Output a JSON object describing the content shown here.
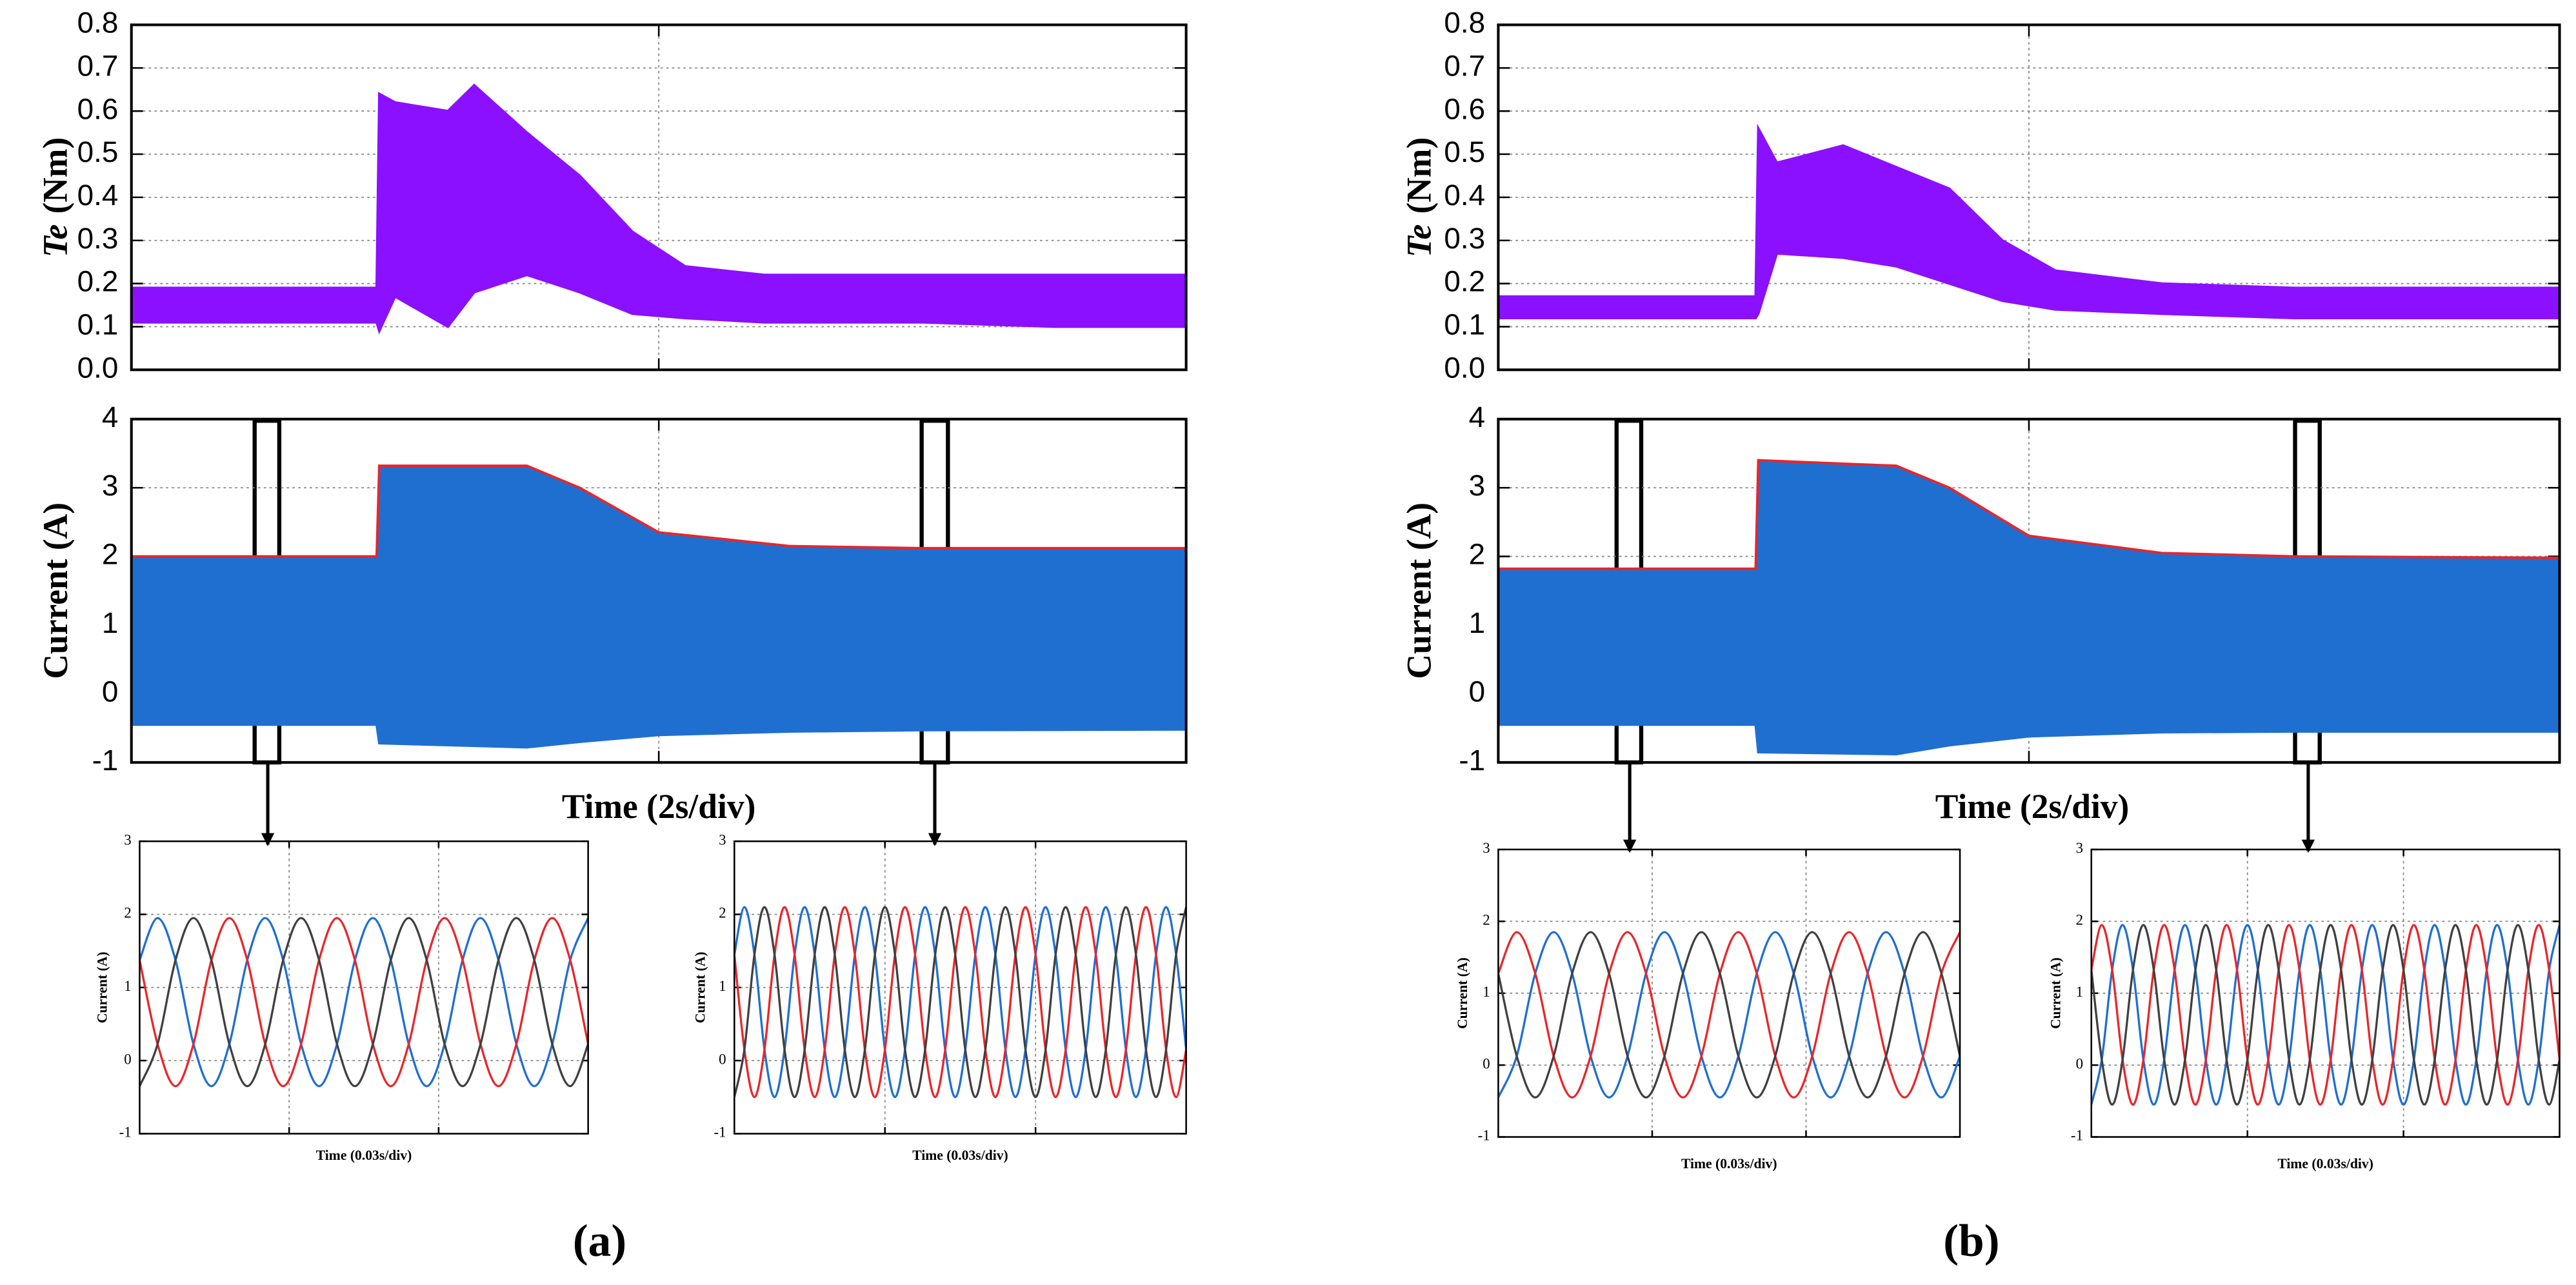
{
  "panel_labels": [
    "(a)",
    "(b)"
  ],
  "chart_data": [
    {
      "type": "band",
      "ylabel": [
        "Te",
        "(Nm)"
      ],
      "xlim": [
        0,
        4
      ],
      "xgrid": [
        2
      ],
      "ylim": [
        0,
        0.8
      ],
      "yticks": [
        {
          "value": 0,
          "label": "0.0"
        },
        0.1,
        0.2,
        0.3,
        0.4,
        0.5,
        0.6,
        0.7,
        0.8
      ],
      "grid": true,
      "fill": "#8b10ff",
      "x": [
        0,
        0.93,
        0.94,
        1.0,
        1.2,
        1.3,
        1.5,
        1.7,
        1.9,
        2.1,
        2.4,
        3.0,
        3.5,
        4.0
      ],
      "series": [
        {
          "color": "#8b10ff",
          "values": [
            0.11,
            0.11,
            0.09,
            0.17,
            0.1,
            0.18,
            0.22,
            0.18,
            0.13,
            0.12,
            0.11,
            0.11,
            0.1,
            0.1
          ]
        },
        {
          "color": "#8b10ff",
          "values": [
            0.19,
            0.19,
            0.64,
            0.62,
            0.6,
            0.66,
            0.55,
            0.45,
            0.32,
            0.24,
            0.22,
            0.22,
            0.22,
            0.22
          ]
        }
      ]
    },
    {
      "type": "band",
      "ylabel": "Current (A)",
      "xlabel": "Time (2s/div)",
      "xlim": [
        0,
        4
      ],
      "xgrid": [
        2
      ],
      "ylim": [
        -1,
        4
      ],
      "yticks": [
        -1,
        0,
        1,
        2,
        3,
        4
      ],
      "grid": true,
      "fill": "#1f6fd1",
      "x": [
        0,
        0.93,
        0.94,
        1.5,
        1.7,
        2.0,
        2.5,
        3.0,
        4.0
      ],
      "series": [
        {
          "color": "#1f6fd1",
          "values": [
            -0.45,
            -0.45,
            -0.72,
            -0.78,
            -0.7,
            -0.6,
            -0.55,
            -0.53,
            -0.52
          ]
        },
        {
          "color": "#e8262a",
          "values": [
            2.0,
            2.0,
            3.32,
            3.32,
            3.0,
            2.35,
            2.15,
            2.12,
            2.12
          ]
        }
      ]
    },
    {
      "type": "line",
      "ylabel": "Current (A)",
      "xlabel": "Time (0.03s/div)",
      "xlim": [
        0,
        0.09
      ],
      "xgrid": [
        0.03,
        0.06
      ],
      "ylim": [
        -1,
        3
      ],
      "yticks": [
        -1,
        0,
        1,
        2,
        3
      ],
      "grid": true,
      "x": [
        0,
        0.0036,
        0.0072,
        0.0108,
        0.0144,
        0.018,
        0.0216,
        0.0252,
        0.0288,
        0.0324,
        0.036,
        0.0396,
        0.0432,
        0.0468,
        0.0504,
        0.054,
        0.0576,
        0.0612,
        0.0648,
        0.0684,
        0.072,
        0.0756,
        0.0792,
        0.0828,
        0.0864,
        0.09
      ],
      "series": [
        {
          "color": "#1f6fd1",
          "values": [
            1.375,
            1.95,
            1.375,
            0.225,
            -0.35,
            0.225,
            1.375,
            1.95,
            1.375,
            0.225,
            -0.35,
            0.225,
            1.375,
            1.95,
            1.375,
            0.225,
            -0.35,
            0.225,
            1.375,
            1.95,
            1.375,
            0.225,
            -0.35,
            0.225,
            1.375,
            1.95
          ]
        },
        {
          "color": "#e8262a",
          "values": [
            1.375,
            0.225,
            -0.35,
            0.225,
            1.375,
            1.95,
            1.375,
            0.225,
            -0.35,
            0.225,
            1.375,
            1.95,
            1.375,
            0.225,
            -0.35,
            0.225,
            1.375,
            1.95,
            1.375,
            0.225,
            -0.35,
            0.225,
            1.375,
            1.95,
            1.375,
            0.225
          ]
        },
        {
          "color": "#404040",
          "values": [
            -0.35,
            0.225,
            1.375,
            1.95,
            1.375,
            0.225,
            -0.35,
            0.225,
            1.375,
            1.95,
            1.375,
            0.225,
            -0.35,
            0.225,
            1.375,
            1.95,
            1.375,
            0.225,
            -0.35,
            0.225,
            1.375,
            1.95,
            1.375,
            0.225,
            -0.35,
            0.225
          ]
        }
      ]
    },
    {
      "type": "line",
      "ylabel": "Current (A)",
      "xlabel": "Time (0.03s/div)",
      "xlim": [
        0,
        0.09
      ],
      "xgrid": [
        0.03,
        0.06
      ],
      "ylim": [
        -1,
        3
      ],
      "yticks": [
        -1,
        0,
        1,
        2,
        3
      ],
      "grid": true,
      "x": [
        0,
        0.002,
        0.004,
        0.006,
        0.008,
        0.01,
        0.012,
        0.014,
        0.016,
        0.018,
        0.02,
        0.022,
        0.024,
        0.026,
        0.028,
        0.03,
        0.032,
        0.034,
        0.036,
        0.038,
        0.04,
        0.042,
        0.044,
        0.046,
        0.048,
        0.05,
        0.052,
        0.054,
        0.056,
        0.058,
        0.06,
        0.062,
        0.064,
        0.066,
        0.068,
        0.07,
        0.072,
        0.074,
        0.076,
        0.078,
        0.08,
        0.082,
        0.084,
        0.086,
        0.088,
        0.09
      ],
      "series": [
        {
          "color": "#1f6fd1",
          "values": [
            1.45,
            2.1,
            1.45,
            0.15,
            -0.5,
            0.15,
            1.45,
            2.1,
            1.45,
            0.15,
            -0.5,
            0.15,
            1.45,
            2.1,
            1.45,
            0.15,
            -0.5,
            0.15,
            1.45,
            2.1,
            1.45,
            0.15,
            -0.5,
            0.15,
            1.45,
            2.1,
            1.45,
            0.15,
            -0.5,
            0.15,
            1.45,
            2.1,
            1.45,
            0.15,
            -0.5,
            0.15,
            1.45,
            2.1,
            1.45,
            0.15,
            -0.5,
            0.15,
            1.45,
            2.1,
            1.45,
            0.15
          ]
        },
        {
          "color": "#e8262a",
          "values": [
            1.45,
            0.15,
            -0.5,
            0.15,
            1.45,
            2.1,
            1.45,
            0.15,
            -0.5,
            0.15,
            1.45,
            2.1,
            1.45,
            0.15,
            -0.5,
            0.15,
            1.45,
            2.1,
            1.45,
            0.15,
            -0.5,
            0.15,
            1.45,
            2.1,
            1.45,
            0.15,
            -0.5,
            0.15,
            1.45,
            2.1,
            1.45,
            0.15,
            -0.5,
            0.15,
            1.45,
            2.1,
            1.45,
            0.15,
            -0.5,
            0.15,
            1.45,
            2.1,
            1.45,
            0.15,
            -0.5,
            0.15
          ]
        },
        {
          "color": "#404040",
          "values": [
            -0.5,
            0.15,
            1.45,
            2.1,
            1.45,
            0.15,
            -0.5,
            0.15,
            1.45,
            2.1,
            1.45,
            0.15,
            -0.5,
            0.15,
            1.45,
            2.1,
            1.45,
            0.15,
            -0.5,
            0.15,
            1.45,
            2.1,
            1.45,
            0.15,
            -0.5,
            0.15,
            1.45,
            2.1,
            1.45,
            0.15,
            -0.5,
            0.15,
            1.45,
            2.1,
            1.45,
            0.15,
            -0.5,
            0.15,
            1.45,
            2.1,
            1.45,
            0.15,
            -0.5,
            0.15,
            1.45,
            2.1
          ]
        }
      ]
    },
    {
      "type": "band",
      "ylabel": [
        "Te",
        "(Nm)"
      ],
      "xlim": [
        0,
        4
      ],
      "xgrid": [
        2
      ],
      "ylim": [
        0,
        0.8
      ],
      "yticks": [
        {
          "value": 0,
          "label": "0.0"
        },
        0.1,
        0.2,
        0.3,
        0.4,
        0.5,
        0.6,
        0.7,
        0.8
      ],
      "grid": true,
      "fill": "#8b10ff",
      "x": [
        0,
        0.97,
        0.98,
        1.05,
        1.3,
        1.5,
        1.7,
        1.9,
        2.1,
        2.5,
        3.0,
        4.0
      ],
      "series": [
        {
          "color": "#8b10ff",
          "values": [
            0.12,
            0.12,
            0.13,
            0.27,
            0.26,
            0.24,
            0.2,
            0.16,
            0.14,
            0.13,
            0.12,
            0.12
          ]
        },
        {
          "color": "#8b10ff",
          "values": [
            0.17,
            0.17,
            0.56,
            0.48,
            0.52,
            0.47,
            0.42,
            0.3,
            0.23,
            0.2,
            0.19,
            0.19
          ]
        }
      ]
    },
    {
      "type": "band",
      "ylabel": "Current (A)",
      "xlabel": "Time (2s/div)",
      "xlim": [
        0,
        4
      ],
      "xgrid": [
        2
      ],
      "ylim": [
        -1,
        4
      ],
      "yticks": [
        -1,
        0,
        1,
        2,
        3,
        4
      ],
      "grid": true,
      "fill": "#1f6fd1",
      "x": [
        0,
        0.97,
        0.98,
        1.5,
        1.7,
        2.0,
        2.5,
        3.0,
        4.0
      ],
      "series": [
        {
          "color": "#1f6fd1",
          "values": [
            -0.45,
            -0.45,
            -0.85,
            -0.88,
            -0.75,
            -0.62,
            -0.56,
            -0.55,
            -0.55
          ]
        },
        {
          "color": "#e8262a",
          "values": [
            1.82,
            1.82,
            3.4,
            3.32,
            3.0,
            2.3,
            2.05,
            2.0,
            1.98
          ]
        }
      ]
    },
    {
      "type": "line",
      "ylabel": "Current (A)",
      "xlabel": "Time (0.03s/div)",
      "xlim": [
        0,
        0.09
      ],
      "xgrid": [
        0.03,
        0.06
      ],
      "ylim": [
        -1,
        3
      ],
      "yticks": [
        -1,
        0,
        1,
        2,
        3
      ],
      "grid": true,
      "x": [
        0,
        0.0036,
        0.0072,
        0.0108,
        0.0144,
        0.018,
        0.0216,
        0.0252,
        0.0288,
        0.0324,
        0.036,
        0.0396,
        0.0432,
        0.0468,
        0.0504,
        0.054,
        0.0576,
        0.0612,
        0.0648,
        0.0684,
        0.072,
        0.0756,
        0.0792,
        0.0828,
        0.0864,
        0.09
      ],
      "series": [
        {
          "color": "#1f6fd1",
          "values": [
            -0.45,
            0.125,
            1.275,
            1.85,
            1.275,
            0.125,
            -0.45,
            0.125,
            1.275,
            1.85,
            1.275,
            0.125,
            -0.45,
            0.125,
            1.275,
            1.85,
            1.275,
            0.125,
            -0.45,
            0.125,
            1.275,
            1.85,
            1.275,
            0.125,
            -0.45,
            0.125
          ]
        },
        {
          "color": "#e8262a",
          "values": [
            1.275,
            1.85,
            1.275,
            0.125,
            -0.45,
            0.125,
            1.275,
            1.85,
            1.275,
            0.125,
            -0.45,
            0.125,
            1.275,
            1.85,
            1.275,
            0.125,
            -0.45,
            0.125,
            1.275,
            1.85,
            1.275,
            0.125,
            -0.45,
            0.125,
            1.275,
            1.85
          ]
        },
        {
          "color": "#404040",
          "values": [
            1.275,
            0.125,
            -0.45,
            0.125,
            1.275,
            1.85,
            1.275,
            0.125,
            -0.45,
            0.125,
            1.275,
            1.85,
            1.275,
            0.125,
            -0.45,
            0.125,
            1.275,
            1.85,
            1.275,
            0.125,
            -0.45,
            0.125,
            1.275,
            1.85,
            1.275,
            0.125
          ]
        }
      ]
    },
    {
      "type": "line",
      "ylabel": "Current (A)",
      "xlabel": "Time (0.03s/div)",
      "xlim": [
        0,
        0.09
      ],
      "xgrid": [
        0.03,
        0.06
      ],
      "ylim": [
        -1,
        3
      ],
      "yticks": [
        -1,
        0,
        1,
        2,
        3
      ],
      "grid": true,
      "x": [
        0,
        0.002,
        0.004,
        0.006,
        0.008,
        0.01,
        0.012,
        0.014,
        0.016,
        0.018,
        0.02,
        0.022,
        0.024,
        0.026,
        0.028,
        0.03,
        0.032,
        0.034,
        0.036,
        0.038,
        0.04,
        0.042,
        0.044,
        0.046,
        0.048,
        0.05,
        0.052,
        0.054,
        0.056,
        0.058,
        0.06,
        0.062,
        0.064,
        0.066,
        0.068,
        0.07,
        0.072,
        0.074,
        0.076,
        0.078,
        0.08,
        0.082,
        0.084,
        0.086,
        0.088,
        0.09
      ],
      "series": [
        {
          "color": "#1f6fd1",
          "values": [
            -0.55,
            0.075,
            1.325,
            1.95,
            1.325,
            0.075,
            -0.55,
            0.075,
            1.325,
            1.95,
            1.325,
            0.075,
            -0.55,
            0.075,
            1.325,
            1.95,
            1.325,
            0.075,
            -0.55,
            0.075,
            1.325,
            1.95,
            1.325,
            0.075,
            -0.55,
            0.075,
            1.325,
            1.95,
            1.325,
            0.075,
            -0.55,
            0.075,
            1.325,
            1.95,
            1.325,
            0.075,
            -0.55,
            0.075,
            1.325,
            1.95,
            1.325,
            0.075,
            -0.55,
            0.075,
            1.325,
            1.95
          ]
        },
        {
          "color": "#e8262a",
          "values": [
            1.325,
            1.95,
            1.325,
            0.075,
            -0.55,
            0.075,
            1.325,
            1.95,
            1.325,
            0.075,
            -0.55,
            0.075,
            1.325,
            1.95,
            1.325,
            0.075,
            -0.55,
            0.075,
            1.325,
            1.95,
            1.325,
            0.075,
            -0.55,
            0.075,
            1.325,
            1.95,
            1.325,
            0.075,
            -0.55,
            0.075,
            1.325,
            1.95,
            1.325,
            0.075,
            -0.55,
            0.075,
            1.325,
            1.95,
            1.325,
            0.075,
            -0.55,
            0.075,
            1.325,
            1.95,
            1.325,
            0.075
          ]
        },
        {
          "color": "#404040",
          "values": [
            1.325,
            0.075,
            -0.55,
            0.075,
            1.325,
            1.95,
            1.325,
            0.075,
            -0.55,
            0.075,
            1.325,
            1.95,
            1.325,
            0.075,
            -0.55,
            0.075,
            1.325,
            1.95,
            1.325,
            0.075,
            -0.55,
            0.075,
            1.325,
            1.95,
            1.325,
            0.075,
            -0.55,
            0.075,
            1.325,
            1.95,
            1.325,
            0.075,
            -0.55,
            0.075,
            1.325,
            1.95,
            1.325,
            0.075,
            -0.55,
            0.075,
            1.325,
            1.95,
            1.325,
            0.075,
            -0.55,
            0.075
          ]
        }
      ]
    }
  ]
}
